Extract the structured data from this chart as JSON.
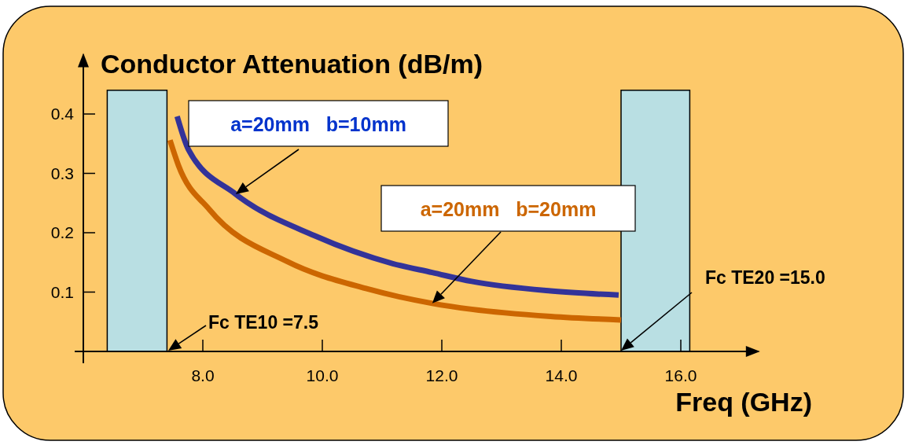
{
  "chart_data": {
    "type": "line",
    "title": "Conductor Attenuation (dB/m)",
    "xlabel": "Freq (GHz)",
    "xlim": [
      6.0,
      17.3
    ],
    "ylim": [
      0,
      0.5
    ],
    "xticks": [
      {
        "value": 8,
        "label": "8.0"
      },
      {
        "value": 10,
        "label": "10.0"
      },
      {
        "value": 12,
        "label": "12.0"
      },
      {
        "value": 14,
        "label": "14.0"
      },
      {
        "value": 16,
        "label": "16.0"
      }
    ],
    "yticks": [
      0.1,
      0.2,
      0.3,
      0.4
    ],
    "series": [
      {
        "name": "a=20mm   b=10mm",
        "color": "#333399",
        "x": [
          7.57,
          7.76,
          8.55,
          9.87,
          11.18,
          11.84,
          12.5,
          13.82,
          14.96
        ],
        "values": [
          0.396,
          0.34,
          0.265,
          0.195,
          0.148,
          0.133,
          0.118,
          0.102,
          0.095
        ]
      },
      {
        "name": "a=20mm   b=20mm",
        "color": "#cc6600",
        "x": [
          7.45,
          7.59,
          8.11,
          9.42,
          10.73,
          11.84,
          12.5,
          13.82,
          15.0
        ],
        "values": [
          0.356,
          0.314,
          0.239,
          0.151,
          0.106,
          0.081,
          0.071,
          0.059,
          0.053
        ]
      }
    ],
    "bands": [
      {
        "axis": "x",
        "from": 6.4,
        "to": 7.4,
        "color": "#b9dfe3"
      },
      {
        "axis": "x",
        "from": 15.0,
        "to": 16.15,
        "color": "#b9dfe3"
      }
    ],
    "annotations": [
      "Fc TE10 =7.5",
      "Fc TE20 =15.0"
    ],
    "grid": false,
    "marker": "none",
    "line_style": "solid"
  }
}
